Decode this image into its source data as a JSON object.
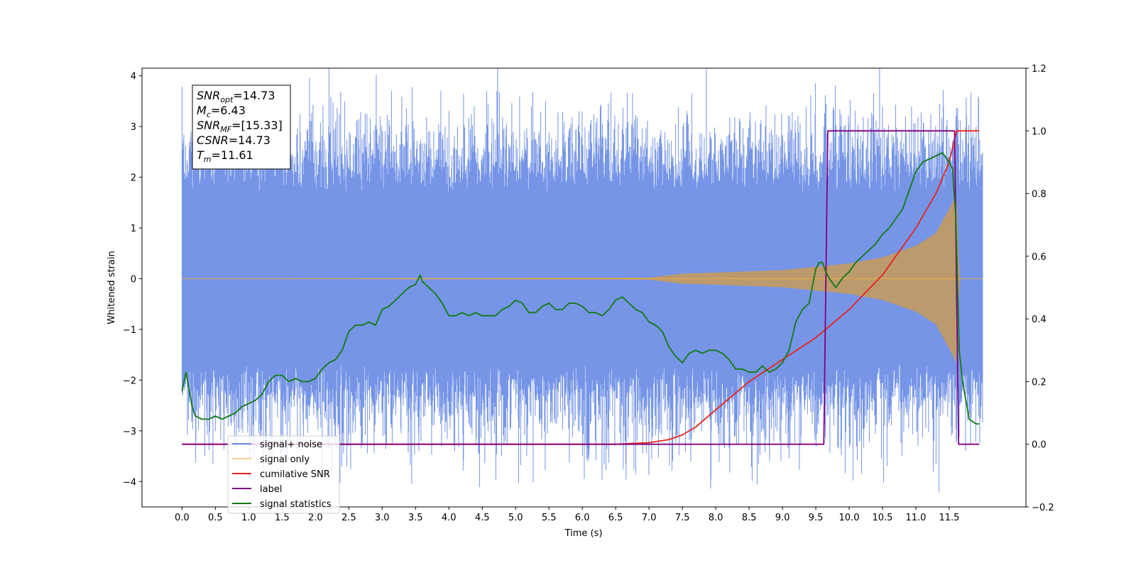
{
  "chart_data": {
    "type": "line",
    "xlabel": "Time (s)",
    "ylabel": "Whitened strain",
    "xlim": [
      -0.6,
      12.65
    ],
    "ylim": [
      -4.5,
      4.15
    ],
    "y2lim": [
      -0.2,
      1.2
    ],
    "xticks": [
      "0.0",
      "0.5",
      "1.0",
      "1.5",
      "2.0",
      "2.5",
      "3.0",
      "3.5",
      "4.0",
      "4.5",
      "5.0",
      "5.5",
      "6.0",
      "6.5",
      "7.0",
      "7.5",
      "8.0",
      "8.5",
      "9.0",
      "9.5",
      "10.0",
      "10.5",
      "11.0",
      "11.5"
    ],
    "yticks": [
      "4",
      "3",
      "2",
      "1",
      "0",
      "−1",
      "−2",
      "−3",
      "−4"
    ],
    "y2ticks": [
      "1.2",
      "1.0",
      "0.8",
      "0.6",
      "0.4",
      "0.2",
      "0.0",
      "−0.2"
    ],
    "grid": false,
    "legend_position": "bottom-left",
    "annotation": [
      {
        "base": "SNR",
        "sub": "opt",
        "value": "=14.73"
      },
      {
        "base": "M",
        "sub": "c",
        "value": "=6.43"
      },
      {
        "base": "SNR",
        "sub": "MF",
        "value": "=[15.33]"
      },
      {
        "base": "CSNR",
        "sub": "",
        "value": "=14.73"
      },
      {
        "base": "T",
        "sub": "m",
        "value": "=11.61"
      }
    ],
    "series": [
      {
        "name": "signal+ noise",
        "color": "#6f8fe6",
        "axis": "left",
        "kind": "noisy",
        "x_range": [
          0.0,
          12.0
        ],
        "envelope_low": -1.7,
        "envelope_high": 1.7,
        "max_value": 3.75,
        "min_value": -4.1
      },
      {
        "name": "signal only",
        "color": "#f5b041",
        "axis": "left",
        "kind": "chirp",
        "x_range": [
          0.0,
          12.0
        ],
        "amplitude": [
          [
            0.0,
            0.0
          ],
          [
            7.0,
            0.02
          ],
          [
            7.5,
            0.1
          ],
          [
            8.0,
            0.12
          ],
          [
            9.0,
            0.17
          ],
          [
            10.0,
            0.3
          ],
          [
            10.5,
            0.42
          ],
          [
            11.0,
            0.65
          ],
          [
            11.3,
            0.9
          ],
          [
            11.55,
            1.5
          ],
          [
            11.61,
            1.7
          ],
          [
            11.65,
            0.0
          ],
          [
            12.0,
            0.0
          ]
        ]
      },
      {
        "name": "cumilative SNR",
        "color": "#e8211b",
        "axis": "right",
        "x": [
          0.0,
          6.5,
          7.0,
          7.3,
          7.5,
          7.7,
          8.0,
          8.5,
          9.0,
          9.5,
          10.0,
          10.5,
          11.0,
          11.3,
          11.5,
          11.61,
          11.62,
          11.7,
          11.95
        ],
        "values": [
          0.0,
          0.0,
          0.005,
          0.015,
          0.03,
          0.055,
          0.11,
          0.2,
          0.27,
          0.34,
          0.43,
          0.54,
          0.69,
          0.8,
          0.9,
          1.0,
          1.0,
          1.0,
          1.0
        ]
      },
      {
        "name": "label",
        "color": "#800080",
        "axis": "right",
        "x": [
          0.0,
          9.62,
          9.68,
          11.58,
          11.64,
          11.95
        ],
        "values": [
          0.0,
          0.0,
          1.0,
          1.0,
          0.0,
          0.0
        ]
      },
      {
        "name": "signal statistics",
        "color": "#117a11",
        "axis": "right",
        "x": [
          0.0,
          0.06,
          0.1,
          0.15,
          0.2,
          0.3,
          0.4,
          0.5,
          0.6,
          0.7,
          0.8,
          0.9,
          1.0,
          1.1,
          1.2,
          1.3,
          1.4,
          1.5,
          1.6,
          1.7,
          1.8,
          1.9,
          2.0,
          2.1,
          2.2,
          2.3,
          2.4,
          2.5,
          2.6,
          2.7,
          2.8,
          2.9,
          3.0,
          3.1,
          3.2,
          3.3,
          3.4,
          3.5,
          3.57,
          3.6,
          3.7,
          3.8,
          3.9,
          4.0,
          4.1,
          4.2,
          4.3,
          4.4,
          4.5,
          4.6,
          4.7,
          4.8,
          4.9,
          5.0,
          5.1,
          5.2,
          5.3,
          5.4,
          5.5,
          5.6,
          5.7,
          5.8,
          5.9,
          6.0,
          6.1,
          6.2,
          6.3,
          6.4,
          6.5,
          6.6,
          6.7,
          6.8,
          6.9,
          7.0,
          7.1,
          7.2,
          7.3,
          7.4,
          7.5,
          7.6,
          7.7,
          7.8,
          7.9,
          8.0,
          8.1,
          8.2,
          8.3,
          8.4,
          8.5,
          8.6,
          8.7,
          8.8,
          8.9,
          9.0,
          9.1,
          9.2,
          9.3,
          9.4,
          9.5,
          9.55,
          9.6,
          9.65,
          9.7,
          9.8,
          9.9,
          10.0,
          10.1,
          10.2,
          10.3,
          10.4,
          10.5,
          10.6,
          10.7,
          10.8,
          10.9,
          11.0,
          11.1,
          11.2,
          11.3,
          11.4,
          11.5,
          11.55,
          11.6,
          11.65,
          11.7,
          11.8,
          11.9,
          11.95
        ],
        "values": [
          0.17,
          0.23,
          0.18,
          0.12,
          0.09,
          0.08,
          0.08,
          0.09,
          0.08,
          0.09,
          0.1,
          0.12,
          0.13,
          0.14,
          0.16,
          0.2,
          0.22,
          0.22,
          0.2,
          0.21,
          0.2,
          0.2,
          0.21,
          0.24,
          0.26,
          0.27,
          0.3,
          0.36,
          0.38,
          0.38,
          0.39,
          0.38,
          0.43,
          0.44,
          0.46,
          0.48,
          0.5,
          0.51,
          0.54,
          0.52,
          0.5,
          0.48,
          0.45,
          0.41,
          0.41,
          0.42,
          0.41,
          0.42,
          0.41,
          0.41,
          0.41,
          0.43,
          0.44,
          0.46,
          0.45,
          0.42,
          0.42,
          0.44,
          0.45,
          0.43,
          0.43,
          0.45,
          0.45,
          0.44,
          0.42,
          0.42,
          0.41,
          0.43,
          0.46,
          0.47,
          0.45,
          0.43,
          0.42,
          0.39,
          0.38,
          0.36,
          0.31,
          0.28,
          0.26,
          0.29,
          0.3,
          0.29,
          0.3,
          0.3,
          0.29,
          0.27,
          0.24,
          0.24,
          0.23,
          0.23,
          0.25,
          0.23,
          0.24,
          0.26,
          0.3,
          0.39,
          0.43,
          0.45,
          0.56,
          0.58,
          0.58,
          0.55,
          0.53,
          0.5,
          0.53,
          0.55,
          0.58,
          0.6,
          0.62,
          0.64,
          0.67,
          0.69,
          0.72,
          0.75,
          0.81,
          0.87,
          0.9,
          0.91,
          0.92,
          0.93,
          0.9,
          0.88,
          0.72,
          0.3,
          0.2,
          0.08,
          0.065,
          0.065
        ]
      }
    ]
  }
}
